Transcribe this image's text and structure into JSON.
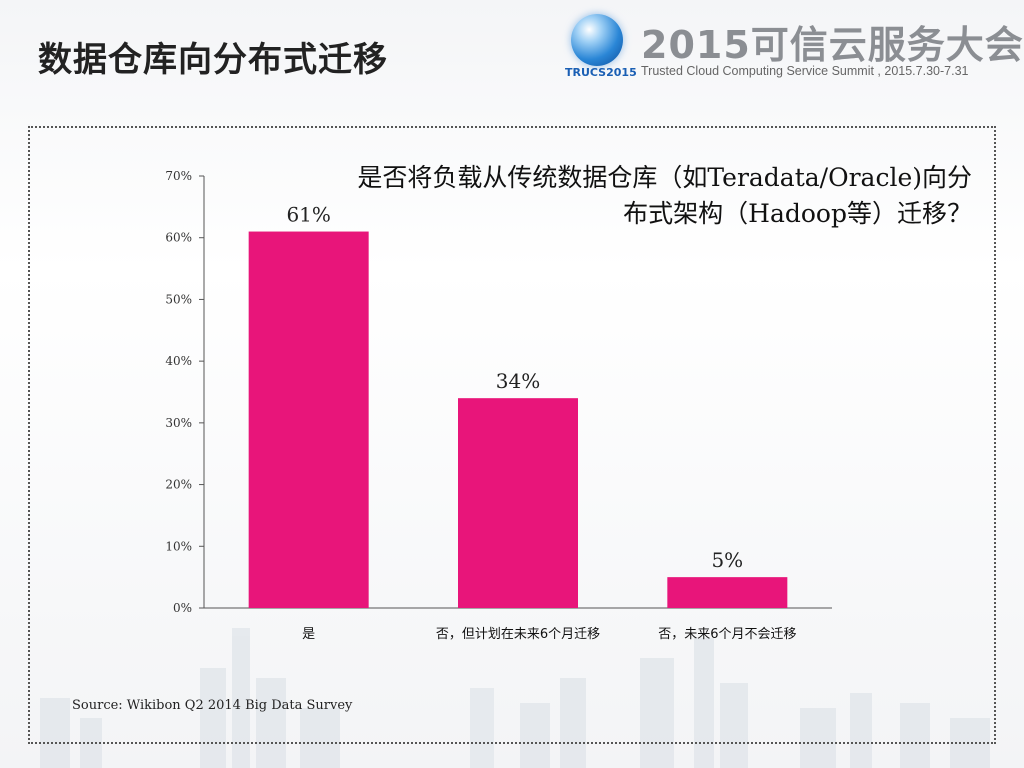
{
  "slide": {
    "title": "数据仓库向分布式迁移",
    "source": "Source: Wikibon Q2 2014 Big Data Survey"
  },
  "header": {
    "summit_title": "2015可信云服务大会",
    "summit_subtitle": "Trusted Cloud Computing Service Summit , 2015.7.30-7.31",
    "logo_text": "TRUCS2015"
  },
  "colors": {
    "bar": "#e8157a",
    "axis": "#555555"
  },
  "chart_data": {
    "type": "bar",
    "title": "是否将负载从传统数据仓库（如Teradata/Oracle)向分布式架构（Hadoop等）迁移？",
    "categories": [
      "是",
      "否，但计划在未来6个月迁移",
      "否，未来6个月不会迁移"
    ],
    "values": [
      61,
      34,
      5
    ],
    "data_labels": [
      "61%",
      "34%",
      "5%"
    ],
    "yticks": [
      "0%",
      "10%",
      "20%",
      "30%",
      "40%",
      "50%",
      "60%",
      "70%"
    ],
    "ylim": [
      0,
      70
    ],
    "xlabel": "",
    "ylabel": "",
    "grid": false,
    "legend": "none"
  }
}
